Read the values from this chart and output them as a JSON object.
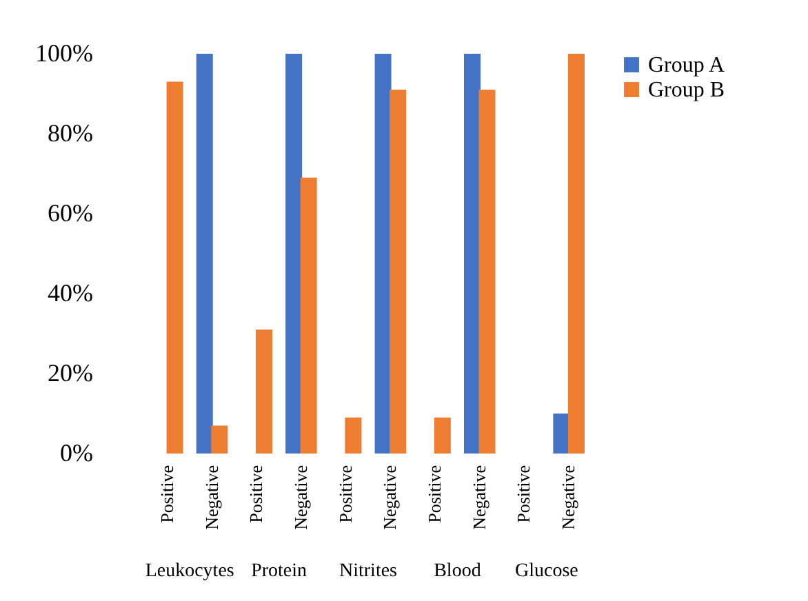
{
  "chart_data": {
    "type": "bar",
    "categories": [
      "Positive",
      "Negative",
      "Positive",
      "Negative",
      "Positive",
      "Negative",
      "Positive",
      "Negative",
      "Positive",
      "Negative"
    ],
    "series": [
      {
        "name": "Group A",
        "color": "#4472c4",
        "values": [
          0,
          100,
          0,
          100,
          0,
          100,
          0,
          100,
          0,
          10
        ]
      },
      {
        "name": "Group B",
        "color": "#ed7d31",
        "values": [
          93,
          7,
          31,
          69,
          9,
          91,
          9,
          91,
          0,
          100
        ]
      }
    ],
    "annotations": [
      "Leukocytes",
      "Protein",
      "Nitrites",
      "Blood",
      "Glucose"
    ],
    "ylim": [
      0,
      100
    ],
    "yticks": [
      {
        "value": 0,
        "label": "0%"
      },
      {
        "value": 20,
        "label": "20%"
      },
      {
        "value": 40,
        "label": "40%"
      },
      {
        "value": 60,
        "label": "60%"
      },
      {
        "value": 80,
        "label": "80%"
      },
      {
        "value": 100,
        "label": "100%"
      }
    ],
    "grid": false,
    "legend": "right"
  }
}
